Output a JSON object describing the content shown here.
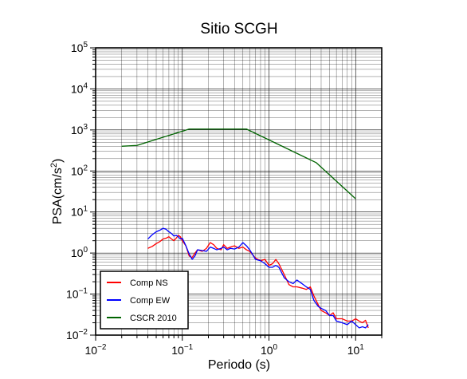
{
  "chart_data": {
    "type": "line",
    "title": "Sitio SCGH",
    "xlabel": "Periodo (s)",
    "ylabel_main": "PSA(cm/s",
    "ylabel_sup": "2",
    "ylabel_close": ")",
    "x_scale": "log",
    "y_scale": "log",
    "xlim": [
      0.01,
      20
    ],
    "ylim": [
      0.01,
      100000
    ],
    "grid": true,
    "legend_position": "bottom-left",
    "x_ticks": [
      {
        "value": 0.01,
        "base": "10",
        "exp": "−2"
      },
      {
        "value": 0.1,
        "base": "10",
        "exp": "−1"
      },
      {
        "value": 1,
        "base": "10",
        "exp": "0"
      },
      {
        "value": 10,
        "base": "10",
        "exp": "1"
      }
    ],
    "y_ticks": [
      {
        "value": 0.01,
        "base": "10",
        "exp": "−2"
      },
      {
        "value": 0.1,
        "base": "10",
        "exp": "−1"
      },
      {
        "value": 1,
        "base": "10",
        "exp": "0"
      },
      {
        "value": 10,
        "base": "10",
        "exp": "1"
      },
      {
        "value": 100,
        "base": "10",
        "exp": "2"
      },
      {
        "value": 1000,
        "base": "10",
        "exp": "3"
      },
      {
        "value": 10000,
        "base": "10",
        "exp": "4"
      },
      {
        "value": 100000,
        "base": "10",
        "exp": "5"
      }
    ],
    "series": [
      {
        "name": "Comp NS",
        "color": "#ff0000",
        "x": [
          0.04,
          0.045,
          0.05,
          0.055,
          0.06,
          0.065,
          0.07,
          0.075,
          0.08,
          0.085,
          0.09,
          0.095,
          0.1,
          0.11,
          0.12,
          0.13,
          0.14,
          0.15,
          0.17,
          0.19,
          0.21,
          0.23,
          0.25,
          0.28,
          0.3,
          0.33,
          0.36,
          0.4,
          0.45,
          0.5,
          0.55,
          0.6,
          0.7,
          0.8,
          0.9,
          1.0,
          1.1,
          1.2,
          1.3,
          1.5,
          1.7,
          1.9,
          2.1,
          2.4,
          2.7,
          3.0,
          3.3,
          3.7,
          4.0,
          4.5,
          5.0,
          5.5,
          6.0,
          7.0,
          8.0,
          9.0,
          10.0,
          11.0,
          12.0,
          13.0,
          14.0
        ],
        "y": [
          1.3,
          1.45,
          1.7,
          1.9,
          2.2,
          2.3,
          2.5,
          2.2,
          2.0,
          2.3,
          2.7,
          2.5,
          2.0,
          1.5,
          0.85,
          0.78,
          1.0,
          1.2,
          1.1,
          1.3,
          1.8,
          1.6,
          1.3,
          1.2,
          1.6,
          1.3,
          1.4,
          1.5,
          1.3,
          1.4,
          1.2,
          1.1,
          0.75,
          0.65,
          0.7,
          0.5,
          0.55,
          0.7,
          0.55,
          0.3,
          0.17,
          0.15,
          0.15,
          0.14,
          0.13,
          0.15,
          0.09,
          0.055,
          0.04,
          0.035,
          0.03,
          0.035,
          0.025,
          0.025,
          0.022,
          0.022,
          0.025,
          0.022,
          0.02,
          0.023,
          0.015
        ]
      },
      {
        "name": "Comp EW",
        "color": "#0000ff",
        "x": [
          0.04,
          0.045,
          0.05,
          0.055,
          0.06,
          0.065,
          0.07,
          0.075,
          0.08,
          0.085,
          0.09,
          0.095,
          0.1,
          0.11,
          0.12,
          0.13,
          0.14,
          0.15,
          0.17,
          0.19,
          0.21,
          0.23,
          0.25,
          0.28,
          0.3,
          0.33,
          0.36,
          0.4,
          0.45,
          0.5,
          0.55,
          0.6,
          0.7,
          0.8,
          0.9,
          1.0,
          1.1,
          1.2,
          1.3,
          1.5,
          1.7,
          1.9,
          2.1,
          2.4,
          2.7,
          3.0,
          3.3,
          3.7,
          4.0,
          4.5,
          5.0,
          5.5,
          6.0,
          7.0,
          8.0,
          9.0,
          10.0,
          11.0,
          12.0,
          13.0,
          14.0
        ],
        "y": [
          2.2,
          2.8,
          3.3,
          3.6,
          4.0,
          3.8,
          3.3,
          3.0,
          2.6,
          2.7,
          2.5,
          2.2,
          2.3,
          1.5,
          0.95,
          0.7,
          0.85,
          1.2,
          1.15,
          1.1,
          1.4,
          1.3,
          1.2,
          1.3,
          1.4,
          1.2,
          1.3,
          1.25,
          1.4,
          1.8,
          1.5,
          1.2,
          0.7,
          0.65,
          0.55,
          0.45,
          0.45,
          0.5,
          0.45,
          0.25,
          0.2,
          0.18,
          0.22,
          0.18,
          0.15,
          0.13,
          0.07,
          0.05,
          0.045,
          0.04,
          0.03,
          0.03,
          0.022,
          0.02,
          0.018,
          0.022,
          0.018,
          0.015,
          0.016,
          0.015,
          0.018
        ]
      },
      {
        "name": "CSCR 2010",
        "color": "#006400",
        "x": [
          0.02,
          0.03,
          0.12,
          0.55,
          3.5,
          10.0
        ],
        "y": [
          400,
          420,
          1050,
          1050,
          160,
          21
        ]
      }
    ]
  }
}
